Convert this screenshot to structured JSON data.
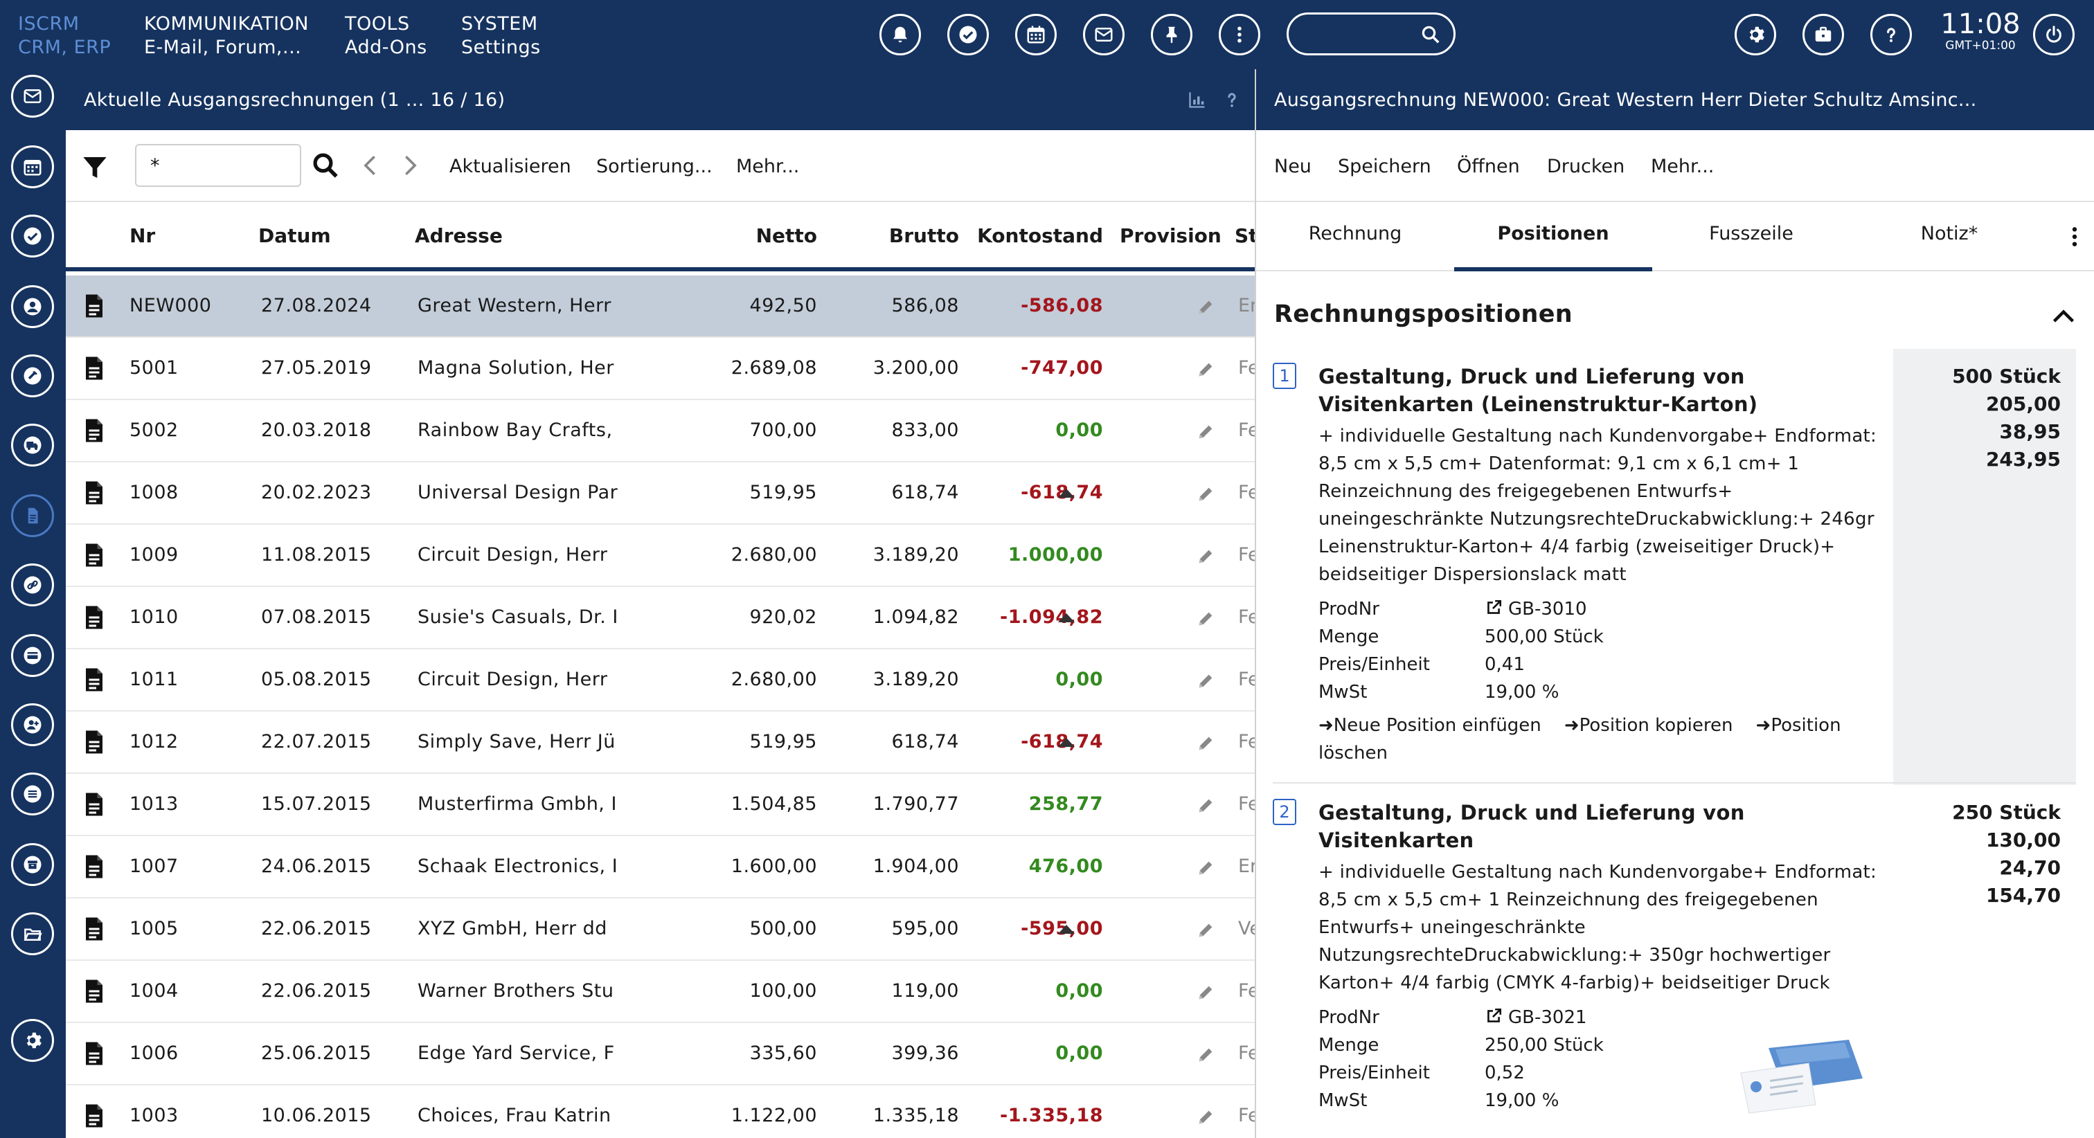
{
  "brand": {
    "line1": "ISCRM",
    "line2": "CRM, ERP"
  },
  "topmenu": [
    {
      "title": "KOMMUNIKATION",
      "sub": "E-Mail, Forum,..."
    },
    {
      "title": "TOOLS",
      "sub": "Add-Ons"
    },
    {
      "title": "SYSTEM",
      "sub": "Settings"
    }
  ],
  "topbar_icons": [
    "bell-icon",
    "check-circle-icon",
    "calendar-icon",
    "mail-icon",
    "pin-icon",
    "more-vertical-icon"
  ],
  "search": {
    "value": "",
    "placeholder": ""
  },
  "right_icons": [
    "gear-icon",
    "briefcase-icon",
    "help-icon",
    "power-icon"
  ],
  "clock": {
    "time": "11:08",
    "tz": "GMT+01:00"
  },
  "sidebar_icons": [
    "mail-icon",
    "calendar-icon",
    "check-icon",
    "contact-icon",
    "tools-icon",
    "truck-icon",
    "invoice-icon",
    "link-icon",
    "card-icon",
    "add-user-icon",
    "list-icon",
    "archive-icon",
    "folder-icon",
    "settings-icon"
  ],
  "left": {
    "title": "Aktuelle Ausgangsrechnungen",
    "count": "(1 ... 16 / 16)",
    "filter_value": "*",
    "toolbar": {
      "refresh": "Aktualisieren",
      "sort": "Sortierung...",
      "more": "Mehr..."
    },
    "columns": {
      "nr": "Nr",
      "datum": "Datum",
      "adresse": "Adresse",
      "netto": "Netto",
      "brutto": "Brutto",
      "konto": "Kontostand",
      "provision": "Provision",
      "status": "St"
    },
    "rows": [
      {
        "nr": "NEW000",
        "datum": "27.08.2024",
        "adresse": "Great Western, Herr",
        "netto": "492,50",
        "brutto": "586,08",
        "konto": "-586,08",
        "ktype": "neg",
        "tri": false,
        "st": "Er",
        "sel": true
      },
      {
        "nr": "5001",
        "datum": "27.05.2019",
        "adresse": "Magna Solution, Her",
        "netto": "2.689,08",
        "brutto": "3.200,00",
        "konto": "-747,00",
        "ktype": "neg",
        "tri": false,
        "st": "Fe"
      },
      {
        "nr": "5002",
        "datum": "20.03.2018",
        "adresse": "Rainbow Bay Crafts,",
        "netto": "700,00",
        "brutto": "833,00",
        "konto": "0,00",
        "ktype": "pos",
        "tri": false,
        "st": "Fe"
      },
      {
        "nr": "1008",
        "datum": "20.02.2023",
        "adresse": "Universal Design Par",
        "netto": "519,95",
        "brutto": "618,74",
        "konto": "-618,74",
        "ktype": "neg",
        "tri": true,
        "st": "Fe"
      },
      {
        "nr": "1009",
        "datum": "11.08.2015",
        "adresse": "Circuit Design, Herr",
        "netto": "2.680,00",
        "brutto": "3.189,20",
        "konto": "1.000,00",
        "ktype": "pos",
        "tri": false,
        "st": "Fe"
      },
      {
        "nr": "1010",
        "datum": "07.08.2015",
        "adresse": "Susie's Casuals, Dr. I",
        "netto": "920,02",
        "brutto": "1.094,82",
        "konto": "-1.094,82",
        "ktype": "neg",
        "tri": true,
        "st": "Fe"
      },
      {
        "nr": "1011",
        "datum": "05.08.2015",
        "adresse": "Circuit Design, Herr",
        "netto": "2.680,00",
        "brutto": "3.189,20",
        "konto": "0,00",
        "ktype": "pos",
        "tri": false,
        "st": "Fe"
      },
      {
        "nr": "1012",
        "datum": "22.07.2015",
        "adresse": "Simply Save, Herr Jü",
        "netto": "519,95",
        "brutto": "618,74",
        "konto": "-618,74",
        "ktype": "neg",
        "tri": true,
        "st": "Fe"
      },
      {
        "nr": "1013",
        "datum": "15.07.2015",
        "adresse": "Musterfirma Gmbh, I",
        "netto": "1.504,85",
        "brutto": "1.790,77",
        "konto": "258,77",
        "ktype": "pos",
        "tri": false,
        "st": "Fe"
      },
      {
        "nr": "1007",
        "datum": "24.06.2015",
        "adresse": "Schaak Electronics, I",
        "netto": "1.600,00",
        "brutto": "1.904,00",
        "konto": "476,00",
        "ktype": "pos",
        "tri": false,
        "st": "Er"
      },
      {
        "nr": "1005",
        "datum": "22.06.2015",
        "adresse": "XYZ GmbH, Herr dd",
        "netto": "500,00",
        "brutto": "595,00",
        "konto": "-595,00",
        "ktype": "neg",
        "tri": true,
        "st": "Ve"
      },
      {
        "nr": "1004",
        "datum": "22.06.2015",
        "adresse": "Warner Brothers Stu",
        "netto": "100,00",
        "brutto": "119,00",
        "konto": "0,00",
        "ktype": "pos",
        "tri": false,
        "st": "Fe"
      },
      {
        "nr": "1006",
        "datum": "25.06.2015",
        "adresse": "Edge Yard Service, F",
        "netto": "335,60",
        "brutto": "399,36",
        "konto": "0,00",
        "ktype": "pos",
        "tri": false,
        "st": "Fe"
      },
      {
        "nr": "1003",
        "datum": "10.06.2015",
        "adresse": "Choices, Frau Katrin",
        "netto": "1.122,00",
        "brutto": "1.335,18",
        "konto": "-1.335,18",
        "ktype": "neg",
        "tri": false,
        "st": "Fe"
      }
    ]
  },
  "right": {
    "title": "Ausgangsrechnung NEW000: Great Western Herr Dieter Schultz Amsinc...",
    "toolbar": {
      "new": "Neu",
      "save": "Speichern",
      "open": "Öffnen",
      "print": "Drucken",
      "more": "Mehr..."
    },
    "tabs": [
      {
        "label": "Rechnung",
        "active": false
      },
      {
        "label": "Positionen",
        "active": true
      },
      {
        "label": "Fusszeile",
        "active": false
      },
      {
        "label": "Notiz*",
        "active": false
      }
    ],
    "section_title": "Rechnungspositionen",
    "labels": {
      "prodnr": "ProdNr",
      "menge": "Menge",
      "preis": "Preis/Einheit",
      "mwst": "MwSt"
    },
    "actions": {
      "insert": "➜Neue Position einfügen",
      "copy": "➜Position kopieren",
      "delete": "➜Position löschen"
    },
    "positions": [
      {
        "num": "1",
        "title": "Gestaltung, Druck und Lieferung von Visitenkarten (Leinenstruktur-Karton)",
        "desc": "+ individuelle Gestaltung nach Kundenvorgabe+ Endformat: 8,5 cm x 5,5 cm+ Datenformat: 9,1 cm x 6,1 cm+ 1 Reinzeichnung des freigegebenen Entwurfs+ uneingeschränkte NutzungsrechteDruckabwicklung:+ 246gr Leinenstruktur-Karton+ 4/4 farbig (zweiseitiger Druck)+ beidseitiger Dispersionslack matt",
        "prodnr": "GB-3010",
        "menge": "500,00 Stück",
        "preis": "0,41",
        "mwst": "19,00 %",
        "sum": [
          "500 Stück",
          "205,00",
          "38,95",
          "243,95"
        ]
      },
      {
        "num": "2",
        "title": "Gestaltung, Druck und Lieferung von Visitenkarten",
        "desc": "+ individuelle Gestaltung nach Kundenvorgabe+ Endformat: 8,5 cm x 5,5 cm+ 1 Reinzeichnung des freigegebenen Entwurfs+ uneingeschränkte NutzungsrechteDruckabwicklung:+ 350gr hochwertiger Karton+ 4/4 farbig (CMYK 4-farbig)+ beidseitiger Druck",
        "prodnr": "GB-3021",
        "menge": "250,00 Stück",
        "preis": "0,52",
        "mwst": "19,00 %",
        "sum": [
          "250 Stück",
          "130,00",
          "24,70",
          "154,70"
        ]
      }
    ]
  }
}
